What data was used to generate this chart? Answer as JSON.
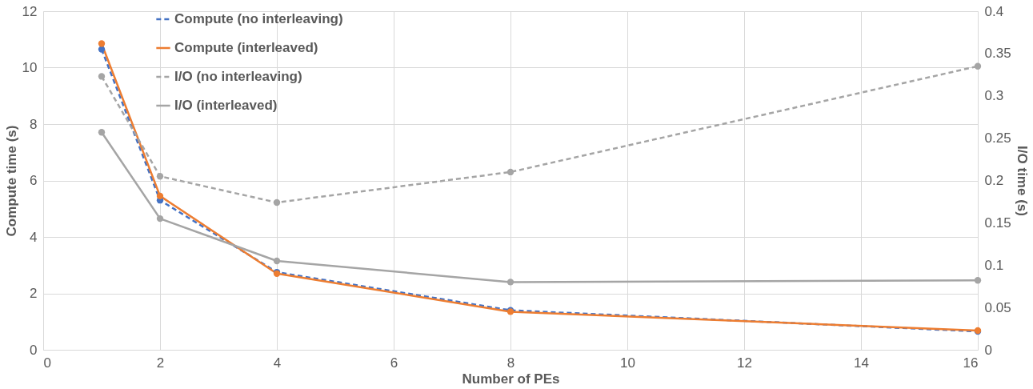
{
  "chart_data": {
    "type": "line",
    "xlabel": "Number of PEs",
    "ylabel": "Compute time (s)",
    "y2label": "I/O time (s)",
    "x": [
      1,
      2,
      4,
      8,
      16
    ],
    "series": [
      {
        "name": "Compute (no interleaving)",
        "color": "#4472c4",
        "line_style": "dashed",
        "values": [
          10.65,
          5.3,
          2.75,
          1.4,
          0.65
        ]
      },
      {
        "name": "Compute (interleaved)",
        "color": "#ed7d31",
        "line_style": "solid",
        "values": [
          10.85,
          5.45,
          2.7,
          1.35,
          0.68
        ]
      },
      {
        "name": "I/O (no interleaving)",
        "color": "#a5a5a5",
        "line_style": "dashed",
        "axis": "y2",
        "values": [
          0.323,
          0.205,
          0.174,
          0.21,
          0.335
        ]
      },
      {
        "name": "I/O (interleaved)",
        "color": "#a5a5a5",
        "line_style": "solid",
        "axis": "y2",
        "values": [
          0.257,
          0.155,
          0.105,
          0.08,
          0.082
        ]
      }
    ],
    "xlim": [
      0,
      16
    ],
    "xticks": [
      0,
      2,
      4,
      6,
      8,
      10,
      12,
      14,
      16
    ],
    "ylim": [
      0,
      12
    ],
    "yticks": [
      0,
      2,
      4,
      6,
      8,
      10,
      12
    ],
    "y2lim": [
      0,
      0.4
    ],
    "y2ticks": [
      0,
      0.05,
      0.1,
      0.15,
      0.2,
      0.25,
      0.3,
      0.35,
      0.4
    ],
    "grid": true,
    "legend": "top left",
    "marker": "circle"
  }
}
